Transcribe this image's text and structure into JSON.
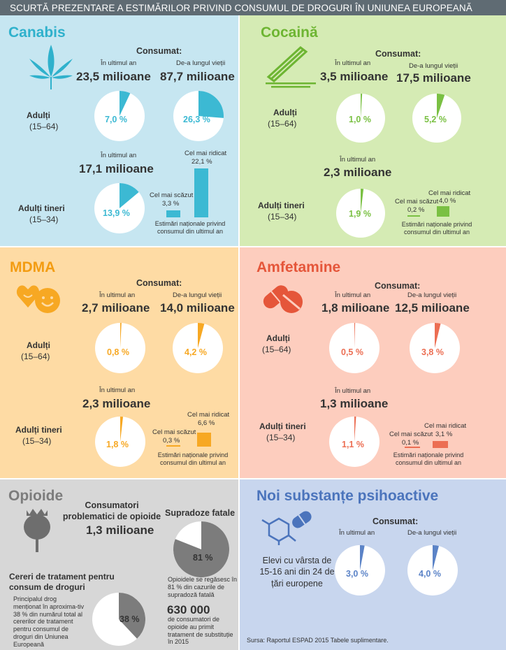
{
  "header": {
    "title": "SCURTĂ PREZENTARE A ESTIMĂRILOR PRIVIND CONSUMUL DE DROGURI ÎN UNIUNEA EUROPEANĂ"
  },
  "colors": {
    "canabis_bg": "#c6e6f1",
    "canabis_accent": "#3cb9d3",
    "cocaina_bg": "#d5ebb4",
    "cocaina_accent": "#7ac043",
    "mdma_bg": "#fedba4",
    "mdma_accent": "#f7a823",
    "amfetamine_bg": "#fdcdbe",
    "amfetamine_accent": "#ec6e53",
    "opioide_bg": "#d7d7d7",
    "opioide_accent": "#7c7c7c",
    "nsp_bg": "#c8d6ee",
    "nsp_accent": "#5b83c7",
    "header_bg": "#5f6b73"
  },
  "canabis": {
    "title": "Canabis",
    "consumat": "Consumat:",
    "adults": {
      "label": "Adulți",
      "range": "(15–64)",
      "last_year_label": "În ultimul an",
      "last_year": "23,5 milioane",
      "lifetime_label": "De-a lungul vieții",
      "lifetime": "87,7 milioane",
      "pct_year": "7,0 %",
      "pct_life": "26,3 %",
      "frac_year": 0.07,
      "frac_life": 0.263
    },
    "young": {
      "label": "Adulți tineri",
      "range": "(15–34)",
      "last_year_label": "În ultimul an",
      "last_year": "17,1 milioane",
      "pct": "13,9 %",
      "frac": 0.139,
      "low_label": "Cel mai scăzut",
      "low": "3,3 %",
      "low_value": 3.3,
      "high_label": "Cel mai ridicat",
      "high": "22,1 %",
      "high_value": 22.1,
      "note": "Estimări naționale privind consumul din ultimul an"
    }
  },
  "cocaina": {
    "title": "Cocaină",
    "consumat": "Consumat:",
    "adults": {
      "label": "Adulți",
      "range": "(15–64)",
      "last_year_label": "În ultimul an",
      "last_year": "3,5 milioane",
      "lifetime_label": "De-a lungul vieții",
      "lifetime": "17,5 milioane",
      "pct_year": "1,0 %",
      "pct_life": "5,2 %",
      "frac_year": 0.01,
      "frac_life": 0.052
    },
    "young": {
      "label": "Adulți tineri",
      "range": "(15–34)",
      "last_year_label": "În ultimul an",
      "last_year": "2,3 milioane",
      "pct": "1,9 %",
      "frac": 0.019,
      "low_label": "Cel mai scăzut",
      "low": "0,2 %",
      "low_value": 0.2,
      "high_label": "Cel mai ridicat",
      "high": "4,0 %",
      "high_value": 4.0,
      "note": "Estimări naționale privind consumul din ultimul an"
    }
  },
  "mdma": {
    "title": "MDMA",
    "consumat": "Consumat:",
    "adults": {
      "label": "Adulți",
      "range": "(15–64)",
      "last_year_label": "În ultimul an",
      "last_year": "2,7 milioane",
      "lifetime_label": "De-a lungul vieții",
      "lifetime": "14,0 milioane",
      "pct_year": "0,8 %",
      "pct_life": "4,2 %",
      "frac_year": 0.008,
      "frac_life": 0.042
    },
    "young": {
      "label": "Adulți tineri",
      "range": "(15–34)",
      "last_year_label": "În ultimul an",
      "last_year": "2,3 milioane",
      "pct": "1,8 %",
      "frac": 0.018,
      "low_label": "Cel mai scăzut",
      "low": "0,3 %",
      "low_value": 0.3,
      "high_label": "Cel mai ridicat",
      "high": "6,6 %",
      "high_value": 6.6,
      "note": "Estimări naționale privind consumul din ultimul an"
    }
  },
  "amfetamine": {
    "title": "Amfetamine",
    "consumat": "Consumat:",
    "adults": {
      "label": "Adulți",
      "range": "(15–64)",
      "last_year_label": "În ultimul an",
      "last_year": "1,8 milioane",
      "lifetime_label": "De-a lungul vieții",
      "lifetime": "12,5 milioane",
      "pct_year": "0,5 %",
      "pct_life": "3,8 %",
      "frac_year": 0.005,
      "frac_life": 0.038
    },
    "young": {
      "label": "Adulți tineri",
      "range": "(15–34)",
      "last_year_label": "În ultimul an",
      "last_year": "1,3 milioane",
      "pct": "1,1 %",
      "frac": 0.011,
      "low_label": "Cel mai scăzut",
      "low": "0,1 %",
      "low_value": 0.1,
      "high_label": "Cel mai ridicat",
      "high": "3,1 %",
      "high_value": 3.1,
      "note": "Estimări naționale privind consumul din ultimul an"
    }
  },
  "opioide": {
    "title": "Opioide",
    "problem_label": "Consumatori problematici de opioide",
    "problem_value": "1,3 milioane",
    "overdose_label": "Supradoze fatale",
    "overdose_pct": "81 %",
    "overdose_frac": 0.81,
    "overdose_note": "Opioidele se regăsesc în 81 % din cazurile de supradoză fatală",
    "treatment_count": "630 000",
    "treatment_note": "de consumatori de opioide au primit tratament de substituție în 2015",
    "requests_title": "Cereri de tratament pentru consum de droguri",
    "requests_text": "Principalul drog menționat în aproxima-tiv 38 % din numărul total al cererilor de tratament pentru consumul de droguri din Uniunea Europeană",
    "requests_pct": "38 %",
    "requests_frac": 0.38
  },
  "nsp": {
    "title": "Noi substanțe psihoactive",
    "consumat": "Consumat:",
    "last_year_label": "În ultimul an",
    "lifetime_label": "De-a lungul vieții",
    "students_label": "Elevi cu vârsta de 15-16 ani din 24 de țări europene",
    "pct_year": "3,0 %",
    "pct_life": "4,0 %",
    "frac_year": 0.03,
    "frac_life": 0.04,
    "source": "Sursa: Raportul ESPAD 2015 Tabele suplimentare."
  }
}
